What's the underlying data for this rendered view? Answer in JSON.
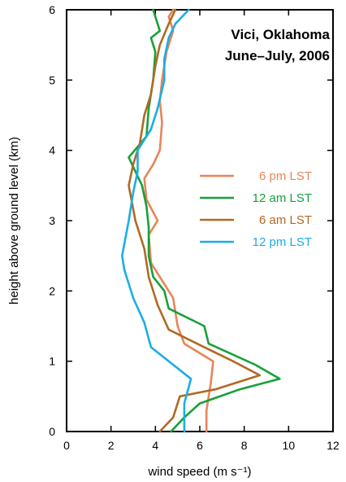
{
  "chart_data": {
    "type": "line",
    "title": "Vici, Oklahoma",
    "subtitle": "June–July, 2006",
    "xlabel": "wind speed (m s⁻¹)",
    "ylabel": "height above ground level (km)",
    "xlim": [
      0,
      12
    ],
    "ylim": [
      0,
      6
    ],
    "x_ticks": [
      0,
      2,
      4,
      6,
      8,
      10,
      12
    ],
    "y_ticks": [
      0,
      1,
      2,
      3,
      4,
      5,
      6
    ],
    "x_tick_labels": [
      "0",
      "2",
      "4",
      "6",
      "8",
      "10",
      "12"
    ],
    "y_tick_labels": [
      "0",
      "1",
      "2",
      "3",
      "4",
      "5",
      "6"
    ],
    "grid": false,
    "legend_position": "right",
    "series": [
      {
        "name": "6 pm LST",
        "color": "#E8845A",
        "points": [
          [
            6.3,
            0
          ],
          [
            6.3,
            0.3
          ],
          [
            6.5,
            0.7
          ],
          [
            6.6,
            1.0
          ],
          [
            5.3,
            1.25
          ],
          [
            5.0,
            1.5
          ],
          [
            4.8,
            1.9
          ],
          [
            4.3,
            2.15
          ],
          [
            3.8,
            2.4
          ],
          [
            3.7,
            2.8
          ],
          [
            4.1,
            3.0
          ],
          [
            3.6,
            3.3
          ],
          [
            3.5,
            3.6
          ],
          [
            3.9,
            3.8
          ],
          [
            4.2,
            4.0
          ],
          [
            4.3,
            4.4
          ],
          [
            4.2,
            4.7
          ],
          [
            4.3,
            5.0
          ],
          [
            4.5,
            5.4
          ],
          [
            4.8,
            5.7
          ],
          [
            4.6,
            5.9
          ],
          [
            4.8,
            6.0
          ]
        ]
      },
      {
        "name": "12 am LST",
        "color": "#17A03A",
        "points": [
          [
            4.7,
            0
          ],
          [
            5.3,
            0.2
          ],
          [
            6.0,
            0.4
          ],
          [
            7.8,
            0.6
          ],
          [
            9.6,
            0.75
          ],
          [
            8.5,
            0.95
          ],
          [
            6.4,
            1.25
          ],
          [
            6.2,
            1.5
          ],
          [
            4.6,
            1.75
          ],
          [
            4.4,
            2.0
          ],
          [
            3.9,
            2.2
          ],
          [
            3.7,
            2.5
          ],
          [
            3.7,
            2.9
          ],
          [
            3.6,
            3.2
          ],
          [
            3.4,
            3.5
          ],
          [
            2.8,
            3.9
          ],
          [
            3.6,
            4.2
          ],
          [
            3.7,
            4.6
          ],
          [
            3.9,
            5.0
          ],
          [
            4.0,
            5.4
          ],
          [
            3.8,
            5.6
          ],
          [
            4.2,
            5.7
          ],
          [
            3.9,
            6.0
          ]
        ]
      },
      {
        "name": "6 am LST",
        "color": "#B06A24",
        "points": [
          [
            4.2,
            0
          ],
          [
            4.8,
            0.2
          ],
          [
            5.1,
            0.5
          ],
          [
            6.7,
            0.6
          ],
          [
            8.7,
            0.8
          ],
          [
            7.5,
            1.0
          ],
          [
            6.2,
            1.2
          ],
          [
            4.6,
            1.45
          ],
          [
            4.1,
            1.8
          ],
          [
            3.7,
            2.2
          ],
          [
            3.5,
            2.6
          ],
          [
            3.1,
            3.0
          ],
          [
            2.8,
            3.5
          ],
          [
            3.0,
            3.8
          ],
          [
            3.3,
            4.1
          ],
          [
            3.5,
            4.5
          ],
          [
            3.8,
            4.8
          ],
          [
            4.0,
            5.2
          ],
          [
            4.2,
            5.5
          ],
          [
            4.6,
            5.8
          ],
          [
            4.9,
            6.0
          ]
        ]
      },
      {
        "name": "12 pm LST",
        "color": "#1AAEE6",
        "points": [
          [
            5.3,
            0
          ],
          [
            5.3,
            0.4
          ],
          [
            5.6,
            0.75
          ],
          [
            5.0,
            0.9
          ],
          [
            3.8,
            1.2
          ],
          [
            3.5,
            1.55
          ],
          [
            3.0,
            1.9
          ],
          [
            2.6,
            2.3
          ],
          [
            2.5,
            2.5
          ],
          [
            2.8,
            3.0
          ],
          [
            3.0,
            3.4
          ],
          [
            3.2,
            3.7
          ],
          [
            3.2,
            4.0
          ],
          [
            3.8,
            4.3
          ],
          [
            4.1,
            4.6
          ],
          [
            4.4,
            5.0
          ],
          [
            4.4,
            5.3
          ],
          [
            4.6,
            5.6
          ],
          [
            4.9,
            5.8
          ],
          [
            5.5,
            6.0
          ]
        ]
      }
    ]
  }
}
